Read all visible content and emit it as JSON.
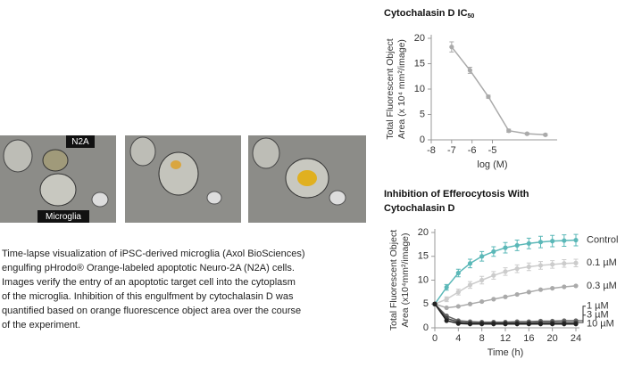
{
  "images": {
    "labels": [
      "N2A",
      "Microglia"
    ]
  },
  "caption": [
    "Time-lapse visualization of iPSC-derived microglia (Axol BioSciences)",
    "engulfing pHrodo® Orange-labeled apoptotic Neuro-2A (N2A) cells.",
    "Images verify the entry of an apoptotic target cell into the cytoplasm",
    "of the microglia. Inhibition of this engulfment by cytochalasin D was",
    "quantified based on orange fluorescence object area over the course",
    "of the experiment."
  ],
  "chart_data": [
    {
      "type": "line",
      "title": [
        "Cytochalasin D IC"
      ],
      "title_subscript": "50",
      "xlabel": "log (M)",
      "ylabel": [
        "Total Fluorescent Object",
        "Area (x 10⁴ mm²/image)"
      ],
      "x": [
        -7,
        -6.1,
        -5.2,
        -4.2,
        -3.3,
        -2.4
      ],
      "values": [
        18.3,
        13.7,
        8.5,
        1.8,
        1.2,
        1.0
      ],
      "errors": [
        1.0,
        0.6,
        0.3,
        0.3,
        0.2,
        0.2
      ],
      "color": "#aaaaaa",
      "xlim": [
        -8,
        -2
      ],
      "xticks": [
        -8,
        -7,
        -6,
        -5
      ],
      "ylim": [
        0,
        20
      ],
      "yticks": [
        0,
        5,
        10,
        15,
        20
      ]
    },
    {
      "type": "line",
      "title": [
        "Inhibition of Efferocytosis With",
        "Cytochalasin D"
      ],
      "xlabel": "Time (h)",
      "ylabel": [
        "Total Fluorescent Object",
        "Area (x10⁴mm²/image)"
      ],
      "x": [
        0,
        2,
        4,
        6,
        8,
        10,
        12,
        14,
        16,
        18,
        20,
        22,
        24
      ],
      "series": [
        {
          "name": "Control",
          "color": "#5bb8b8",
          "values": [
            5,
            8.5,
            11.5,
            13.5,
            15,
            16,
            16.8,
            17.3,
            17.7,
            18,
            18.2,
            18.3,
            18.4
          ],
          "errors": [
            0.3,
            0.6,
            0.8,
            0.9,
            1,
            1,
            1.1,
            1.1,
            1.1,
            1.2,
            1.2,
            1.2,
            1.2
          ]
        },
        {
          "name": "0.1 µM",
          "color": "#cccccc",
          "values": [
            5,
            6,
            7.5,
            9,
            10,
            11,
            11.8,
            12.4,
            12.8,
            13.1,
            13.3,
            13.5,
            13.6
          ],
          "errors": [
            0.3,
            0.5,
            0.6,
            0.7,
            0.8,
            0.8,
            0.8,
            0.8,
            0.8,
            0.8,
            0.8,
            0.8,
            0.8
          ]
        },
        {
          "name": "0.3 µM",
          "color": "#aaaaaa",
          "values": [
            5,
            4.2,
            4.5,
            5,
            5.5,
            6,
            6.5,
            7,
            7.5,
            8,
            8.3,
            8.6,
            8.8
          ]
        },
        {
          "name": "1 µM",
          "color": "#666666",
          "values": [
            5,
            2.5,
            1.5,
            1.3,
            1.2,
            1.2,
            1.2,
            1.3,
            1.3,
            1.4,
            1.4,
            1.5,
            1.5
          ]
        },
        {
          "name": "3 µM",
          "color": "#444444",
          "values": [
            5,
            2,
            1.2,
            1,
            1,
            1,
            1,
            1,
            1,
            1.1,
            1.1,
            1.1,
            1.1
          ]
        },
        {
          "name": "10 µM",
          "color": "#222222",
          "values": [
            5,
            1.5,
            0.9,
            0.8,
            0.8,
            0.8,
            0.8,
            0.8,
            0.8,
            0.8,
            0.8,
            0.8,
            0.8
          ]
        }
      ],
      "xlim": [
        0,
        24
      ],
      "xticks": [
        0,
        4,
        8,
        12,
        16,
        20,
        24
      ],
      "ylim": [
        0,
        20
      ],
      "yticks": [
        0,
        5,
        10,
        15,
        20
      ]
    }
  ]
}
